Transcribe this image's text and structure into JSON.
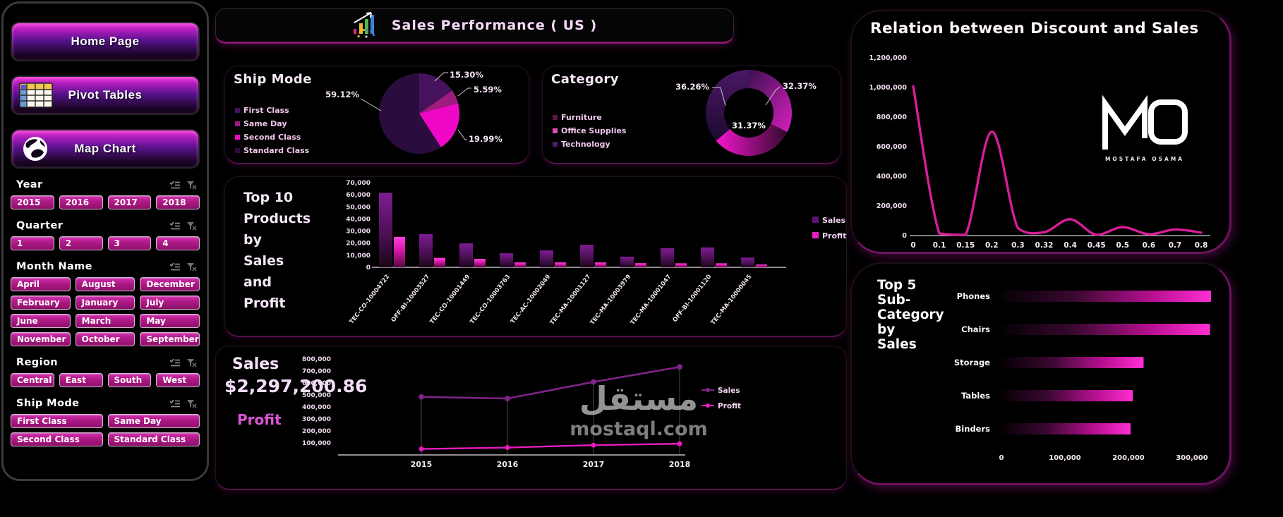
{
  "app": {
    "watermark_ar": "مستقل",
    "watermark_en": "mostaql.com"
  },
  "theme": {
    "accent": "#e619c6",
    "panel_border": "#6e1260",
    "text": "#f2d9f2",
    "bright_magenta": "#ef07c6",
    "dark_purple": "#2a0c3e"
  },
  "header": {
    "title": "Sales Performance  ( US )"
  },
  "branding": {
    "logo": "MO",
    "logo_subtitle": "MOSTAFA OSAMA"
  },
  "sidebar": {
    "nav": [
      {
        "label": "Home Page",
        "icon": "home"
      },
      {
        "label": "Pivot Tables",
        "icon": "pivot-table"
      },
      {
        "label": "Map Chart",
        "icon": "globe"
      }
    ],
    "slicers": [
      {
        "title": "Year",
        "cols": 4,
        "icons": [
          "multi-select-icon",
          "clear-filter-icon"
        ],
        "items": [
          "2015",
          "2016",
          "2017",
          "2018"
        ]
      },
      {
        "title": "Quarter",
        "cols": 4,
        "icons": [
          "multi-select-icon",
          "clear-filter-icon"
        ],
        "items": [
          "1",
          "2",
          "3",
          "4"
        ]
      },
      {
        "title": "Month Name",
        "cols": 3,
        "icons": [
          "multi-select-icon",
          "clear-filter-icon"
        ],
        "items": [
          "April",
          "August",
          "December",
          "February",
          "January",
          "July",
          "June",
          "March",
          "May",
          "November",
          "October",
          "September"
        ]
      },
      {
        "title": "Region",
        "cols": 4,
        "icons": [
          "multi-select-icon",
          "clear-filter-icon"
        ],
        "items": [
          "Central",
          "East",
          "South",
          "West"
        ]
      },
      {
        "title": "Ship Mode",
        "cols": 2,
        "icons": [
          "multi-select-icon",
          "clear-filter-icon"
        ],
        "items": [
          "First Class",
          "Same Day",
          "Second Class",
          "Standard Class"
        ]
      }
    ]
  },
  "chart_data": [
    {
      "id": "ship_mode",
      "type": "pie",
      "title": "Ship Mode",
      "slices": [
        {
          "label": "First Class",
          "value": 15.3,
          "pct_label": "15.30%",
          "color": "#46125e"
        },
        {
          "label": "Same Day",
          "value": 5.59,
          "pct_label": "5.59%",
          "color": "#9e1c7e"
        },
        {
          "label": "Second Class",
          "value": 19.99,
          "pct_label": "19.99%",
          "color": "#ef07c6"
        },
        {
          "label": "Standard Class",
          "value": 59.12,
          "pct_label": "59.12%",
          "color": "#2a0c3e"
        }
      ]
    },
    {
      "id": "category",
      "type": "donut",
      "title": "Category",
      "slices": [
        {
          "label": "Furniture",
          "value": 32.37,
          "pct_label": "32.37%",
          "color": "#8a1b9b"
        },
        {
          "label": "Office Supplies",
          "value": 31.37,
          "pct_label": "31.37%",
          "color": "#ea12b4"
        },
        {
          "label": "Technology",
          "value": 36.26,
          "pct_label": "36.26%",
          "color": "#2e0d46"
        }
      ],
      "legend_colors": [
        "#5a1747",
        "#d94fb6",
        "#4a1d6e"
      ]
    },
    {
      "id": "top10",
      "type": "bar",
      "title_lines": [
        "Top 10",
        "Products",
        "by",
        "Sales",
        "and",
        "Profit"
      ],
      "categories": [
        "TEC-CO-10004722",
        "OFF-BI-10003527",
        "TEC-CO-10001449",
        "TEC-CO-10003763",
        "TEC-AC-10002049",
        "TEC-MA-10001127",
        "TEC-MA-10003979",
        "TEC-MA-10001047",
        "OFF-BI-10001120",
        "TEC-MA-10000045"
      ],
      "series": [
        {
          "name": "Sales",
          "color": "#5e1370",
          "values": [
            61600,
            27500,
            19750,
            11600,
            14000,
            18600,
            8800,
            15900,
            16500,
            8000
          ]
        },
        {
          "name": "Profit",
          "color": "#e81ec0",
          "values": [
            25200,
            7800,
            7000,
            4100,
            4100,
            4100,
            3400,
            3300,
            3300,
            2400
          ]
        }
      ],
      "ylim": [
        0,
        70000
      ],
      "yticks": [
        "70,000",
        "60,000",
        "50,000",
        "40,000",
        "30,000",
        "20,000",
        "10,000",
        "0"
      ]
    },
    {
      "id": "sales_trend",
      "type": "line",
      "kpi_title": "Sales",
      "kpi_value": "$2,297,200.86",
      "kpi_secondary": "Profit",
      "x": [
        "2015",
        "2016",
        "2017",
        "2018"
      ],
      "series": [
        {
          "name": "Sales",
          "color": "#7e2486",
          "values": [
            484250,
            470530,
            608470,
            733950
          ]
        },
        {
          "name": "Profit",
          "color": "#e61cbe",
          "values": [
            49540,
            61620,
            81800,
            93440
          ]
        }
      ],
      "ylim": [
        0,
        800000
      ],
      "yticks": [
        "800,000",
        "700,000",
        "600,000",
        "500,000",
        "400,000",
        "300,000",
        "200,000",
        "100,000"
      ]
    },
    {
      "id": "discount",
      "type": "line",
      "title": "Relation between Discount and Sales",
      "x": [
        "0",
        "0.1",
        "0.15",
        "0.2",
        "0.3",
        "0.32",
        "0.4",
        "0.45",
        "0.5",
        "0.6",
        "0.7",
        "0.8"
      ],
      "values": [
        1100000,
        15000,
        5000,
        765000,
        55000,
        25000,
        120000,
        5000,
        62000,
        10000,
        45000,
        22000
      ],
      "ylim": [
        0,
        1200000
      ],
      "yticks": [
        "1,200,000",
        "1,000,000",
        "800,000",
        "600,000",
        "400,000",
        "200,000",
        "0"
      ],
      "line_color": "#d81d98"
    },
    {
      "id": "top5",
      "type": "hbar",
      "title_lines": [
        "Top 5",
        "Sub-",
        "Category",
        "by",
        "Sales"
      ],
      "categories": [
        "Phones",
        "Chairs",
        "Storage",
        "Tables",
        "Binders"
      ],
      "values": [
        330007,
        328449,
        223844,
        206966,
        203413
      ],
      "xlim": [
        0,
        340000
      ],
      "xticks": [
        "0",
        "100,000",
        "200,000",
        "300,000"
      ]
    }
  ]
}
